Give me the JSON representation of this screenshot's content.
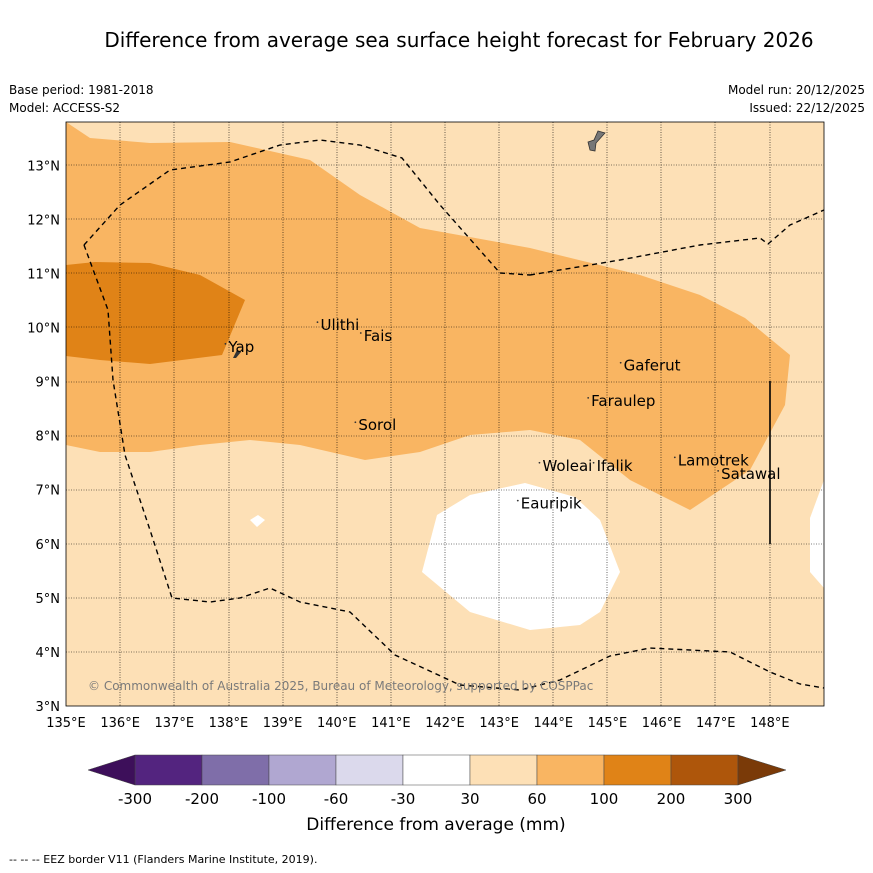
{
  "title": "Difference from average sea surface height forecast for February 2026",
  "meta": {
    "base_period": "Base period: 1981-2018",
    "model": "Model: ACCESS-S2",
    "model_run": "Model run: 20/12/2025",
    "issued": "Issued: 22/12/2025"
  },
  "map": {
    "lon_range": [
      135,
      149
    ],
    "lat_range": [
      3,
      13.8
    ],
    "lon_ticks": [
      "135°E",
      "136°E",
      "137°E",
      "138°E",
      "139°E",
      "140°E",
      "141°E",
      "142°E",
      "143°E",
      "144°E",
      "145°E",
      "146°E",
      "147°E",
      "148°E"
    ],
    "lat_ticks": [
      "3°N",
      "4°N",
      "5°N",
      "6°N",
      "7°N",
      "8°N",
      "9°N",
      "10°N",
      "11°N",
      "12°N",
      "13°N"
    ],
    "places": [
      {
        "name": "Yap",
        "lon": 138.0,
        "lat": 9.55
      },
      {
        "name": "Ulithi",
        "lon": 139.7,
        "lat": 9.95
      },
      {
        "name": "Fais",
        "lon": 140.5,
        "lat": 9.75
      },
      {
        "name": "Sorol",
        "lon": 140.4,
        "lat": 8.1
      },
      {
        "name": "Gaferut",
        "lon": 145.3,
        "lat": 9.2
      },
      {
        "name": "Faraulep",
        "lon": 144.7,
        "lat": 8.55
      },
      {
        "name": "Woleai",
        "lon": 143.8,
        "lat": 7.35
      },
      {
        "name": "Ifalik",
        "lon": 144.8,
        "lat": 7.35
      },
      {
        "name": "Eauripik",
        "lon": 143.4,
        "lat": 6.65
      },
      {
        "name": "Lamotrek",
        "lon": 146.3,
        "lat": 7.45
      },
      {
        "name": "Satawal",
        "lon": 147.1,
        "lat": 7.2
      }
    ],
    "copyright": "© Commonwealth of Australia 2025, Bureau of Meteorology, supported by COSPPac",
    "colors": {
      "band_30_60": "#fde0b6",
      "band_60_100": "#f9b562",
      "band_100_200": "#e08317",
      "land": "#777777"
    }
  },
  "colorbar": {
    "ticks": [
      "-300",
      "-200",
      "-100",
      "-60",
      "-30",
      "30",
      "60",
      "100",
      "200",
      "300"
    ],
    "colors": [
      "#3d0f5a",
      "#53247f",
      "#7f6ea9",
      "#b0a7d1",
      "#dbd9ec",
      "#ffffff",
      "#fde0b6",
      "#f9b562",
      "#e08317",
      "#ae560b",
      "#7a3a08"
    ],
    "label": "Difference from average (mm)"
  },
  "footnote": "--  --  -- EEZ border V11 (Flanders Marine Institute, 2019)."
}
